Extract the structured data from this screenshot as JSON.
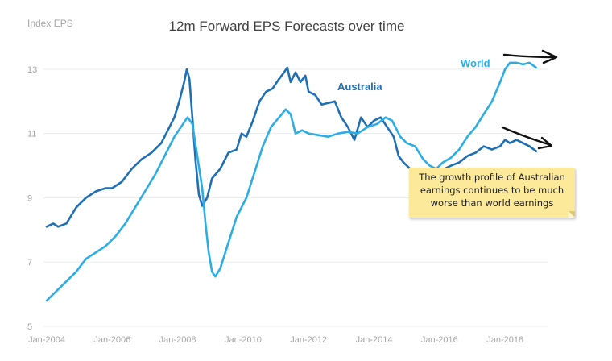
{
  "chart_data": {
    "type": "line",
    "title": "12m Forward EPS Forecasts over time",
    "ylabel": "Index EPS",
    "ylim": [
      5,
      14
    ],
    "yticks": [
      5,
      7,
      9,
      11,
      13
    ],
    "xlim": [
      2004.0,
      2019.3
    ],
    "xticks": [
      {
        "value": 2004,
        "label": "Jan-2004"
      },
      {
        "value": 2006,
        "label": "Jan-2006"
      },
      {
        "value": 2008,
        "label": "Jan-2008"
      },
      {
        "value": 2010,
        "label": "Jan-2010"
      },
      {
        "value": 2012,
        "label": "Jan-2012"
      },
      {
        "value": 2014,
        "label": "Jan-2014"
      },
      {
        "value": 2016,
        "label": "Jan-2016"
      },
      {
        "value": 2018,
        "label": "Jan-2018"
      }
    ],
    "grid": true,
    "series": [
      {
        "name": "Australia",
        "color": "#1f6fb5",
        "points": [
          [
            2004.0,
            8.1
          ],
          [
            2004.2,
            8.2
          ],
          [
            2004.35,
            8.1
          ],
          [
            2004.6,
            8.2
          ],
          [
            2004.9,
            8.7
          ],
          [
            2005.2,
            9.0
          ],
          [
            2005.5,
            9.2
          ],
          [
            2005.8,
            9.3
          ],
          [
            2006.0,
            9.3
          ],
          [
            2006.3,
            9.5
          ],
          [
            2006.6,
            9.9
          ],
          [
            2006.9,
            10.2
          ],
          [
            2007.2,
            10.4
          ],
          [
            2007.5,
            10.7
          ],
          [
            2007.7,
            11.1
          ],
          [
            2007.9,
            11.5
          ],
          [
            2008.05,
            12.0
          ],
          [
            2008.2,
            12.6
          ],
          [
            2008.28,
            13.0
          ],
          [
            2008.36,
            12.7
          ],
          [
            2008.45,
            11.5
          ],
          [
            2008.55,
            10.1
          ],
          [
            2008.65,
            9.1
          ],
          [
            2008.75,
            8.75
          ],
          [
            2008.9,
            9.0
          ],
          [
            2009.05,
            9.6
          ],
          [
            2009.3,
            9.9
          ],
          [
            2009.55,
            10.4
          ],
          [
            2009.8,
            10.5
          ],
          [
            2009.95,
            11.0
          ],
          [
            2010.1,
            10.9
          ],
          [
            2010.3,
            11.4
          ],
          [
            2010.5,
            12.0
          ],
          [
            2010.7,
            12.3
          ],
          [
            2010.9,
            12.4
          ],
          [
            2011.1,
            12.7
          ],
          [
            2011.25,
            12.9
          ],
          [
            2011.35,
            13.05
          ],
          [
            2011.45,
            12.6
          ],
          [
            2011.6,
            12.9
          ],
          [
            2011.75,
            12.6
          ],
          [
            2011.9,
            12.8
          ],
          [
            2012.0,
            12.3
          ],
          [
            2012.2,
            12.2
          ],
          [
            2012.4,
            11.9
          ],
          [
            2012.6,
            11.95
          ],
          [
            2012.8,
            12.0
          ],
          [
            2013.0,
            11.5
          ],
          [
            2013.2,
            11.2
          ],
          [
            2013.4,
            10.8
          ],
          [
            2013.6,
            11.5
          ],
          [
            2013.8,
            11.2
          ],
          [
            2014.0,
            11.4
          ],
          [
            2014.2,
            11.5
          ],
          [
            2014.4,
            11.2
          ],
          [
            2014.6,
            10.9
          ],
          [
            2014.75,
            10.3
          ],
          [
            2014.9,
            10.1
          ],
          [
            2015.1,
            9.9
          ],
          [
            2015.25,
            9.75
          ]
        ]
      },
      {
        "name": "World",
        "color": "#2aaee4",
        "points": [
          [
            2004.0,
            5.8
          ],
          [
            2004.3,
            6.1
          ],
          [
            2004.6,
            6.4
          ],
          [
            2004.9,
            6.7
          ],
          [
            2005.2,
            7.1
          ],
          [
            2005.5,
            7.3
          ],
          [
            2005.8,
            7.5
          ],
          [
            2006.1,
            7.8
          ],
          [
            2006.4,
            8.2
          ],
          [
            2006.7,
            8.7
          ],
          [
            2007.0,
            9.2
          ],
          [
            2007.3,
            9.7
          ],
          [
            2007.6,
            10.3
          ],
          [
            2007.9,
            10.9
          ],
          [
            2008.1,
            11.2
          ],
          [
            2008.3,
            11.5
          ],
          [
            2008.45,
            11.3
          ],
          [
            2008.6,
            10.3
          ],
          [
            2008.75,
            9.3
          ],
          [
            2008.85,
            8.2
          ],
          [
            2008.95,
            7.3
          ],
          [
            2009.05,
            6.7
          ],
          [
            2009.15,
            6.55
          ],
          [
            2009.3,
            6.8
          ],
          [
            2009.55,
            7.6
          ],
          [
            2009.8,
            8.4
          ],
          [
            2010.1,
            9.0
          ],
          [
            2010.35,
            9.8
          ],
          [
            2010.6,
            10.6
          ],
          [
            2010.85,
            11.2
          ],
          [
            2011.1,
            11.5
          ],
          [
            2011.3,
            11.75
          ],
          [
            2011.45,
            11.6
          ],
          [
            2011.6,
            11.0
          ],
          [
            2011.8,
            11.1
          ],
          [
            2012.0,
            11.0
          ],
          [
            2012.3,
            10.95
          ],
          [
            2012.6,
            10.9
          ],
          [
            2012.9,
            11.0
          ],
          [
            2013.2,
            11.05
          ],
          [
            2013.5,
            11.0
          ],
          [
            2013.8,
            11.2
          ],
          [
            2014.1,
            11.3
          ],
          [
            2014.35,
            11.5
          ],
          [
            2014.55,
            11.4
          ],
          [
            2014.8,
            10.9
          ],
          [
            2015.0,
            10.7
          ],
          [
            2015.25,
            10.6
          ],
          [
            2015.5,
            10.2
          ],
          [
            2015.7,
            10.0
          ],
          [
            2015.9,
            9.9
          ],
          [
            2016.1,
            10.1
          ],
          [
            2016.35,
            10.25
          ],
          [
            2016.6,
            10.5
          ],
          [
            2016.85,
            10.9
          ],
          [
            2017.1,
            11.2
          ],
          [
            2017.35,
            11.6
          ],
          [
            2017.6,
            12.0
          ],
          [
            2017.85,
            12.6
          ],
          [
            2018.0,
            13.0
          ],
          [
            2018.15,
            13.2
          ],
          [
            2018.35,
            13.2
          ],
          [
            2018.55,
            13.15
          ],
          [
            2018.75,
            13.2
          ],
          [
            2018.95,
            13.05
          ]
        ]
      },
      {
        "name": "Australia",
        "color": "#1f6fb5",
        "points": [
          [
            2016.15,
            9.9
          ],
          [
            2016.35,
            10.0
          ],
          [
            2016.6,
            10.1
          ],
          [
            2016.85,
            10.3
          ],
          [
            2017.1,
            10.4
          ],
          [
            2017.35,
            10.6
          ],
          [
            2017.6,
            10.5
          ],
          [
            2017.85,
            10.6
          ],
          [
            2018.0,
            10.8
          ],
          [
            2018.15,
            10.7
          ],
          [
            2018.35,
            10.8
          ],
          [
            2018.55,
            10.7
          ],
          [
            2018.75,
            10.6
          ],
          [
            2018.95,
            10.45
          ]
        ]
      }
    ],
    "annotation": {
      "text": "The growth profile of Australian earnings continues to be much worse than world earnings"
    }
  }
}
